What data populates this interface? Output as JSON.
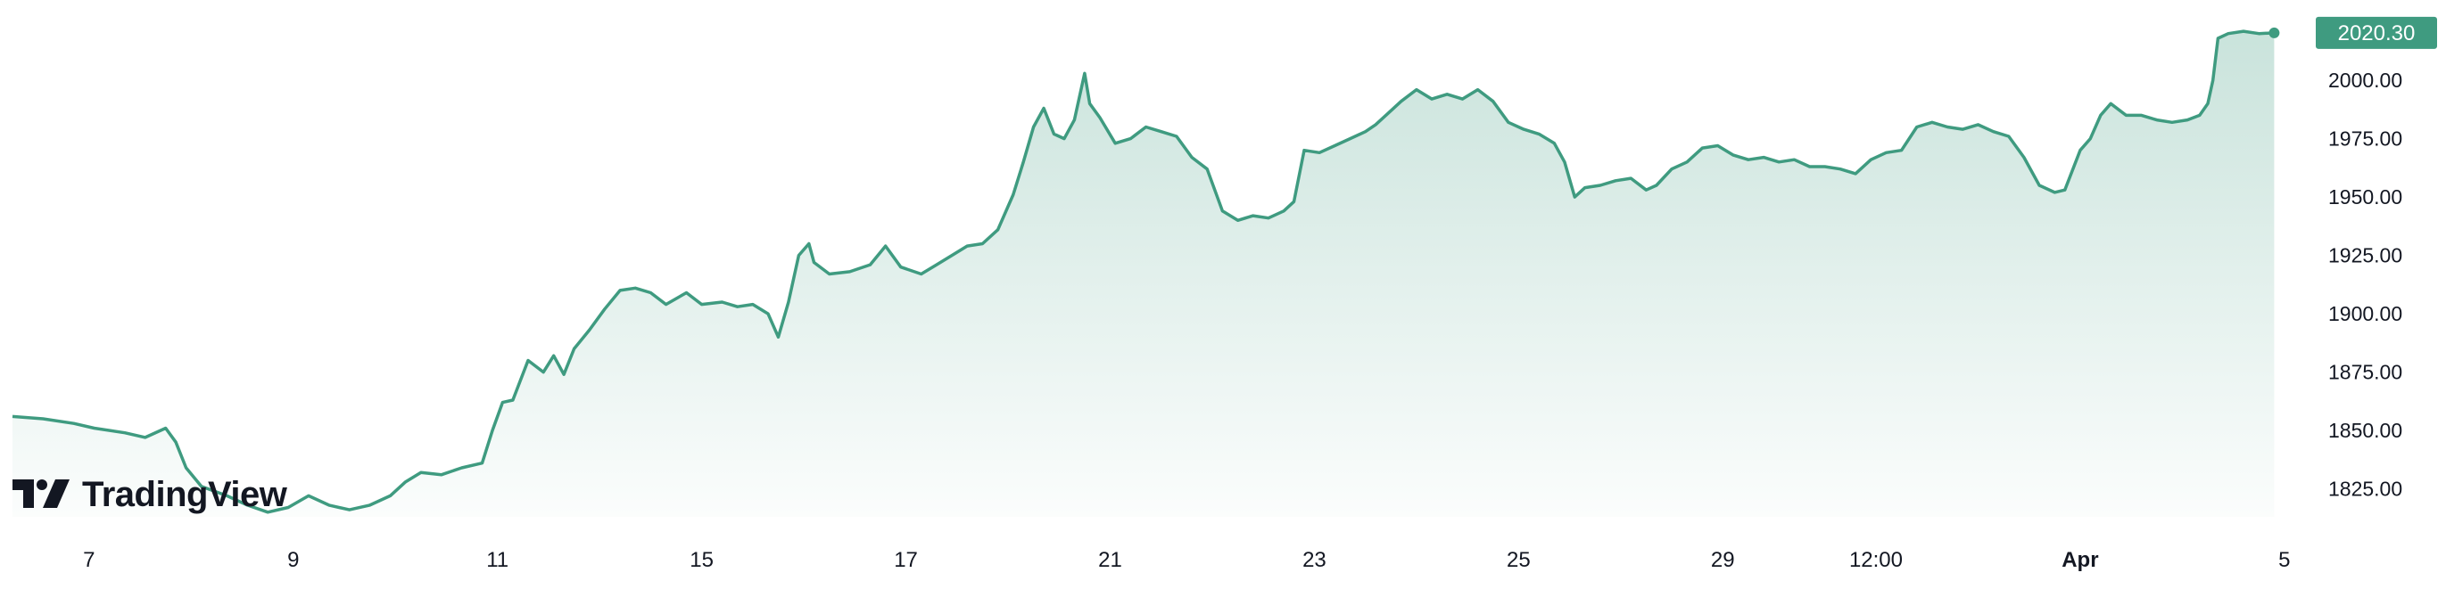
{
  "brand": {
    "name": "TradingView",
    "logo_icon": "tradingview-logo-icon"
  },
  "colors": {
    "line": "#3f9b80",
    "badge_bg": "#3f9b80",
    "badge_text": "#ffffff",
    "axis_text": "#131722",
    "background": "#ffffff"
  },
  "chart_data": {
    "type": "area",
    "title": "",
    "xlabel": "",
    "ylabel": "",
    "grid": false,
    "last_price": "2020.30",
    "y_ticks": [
      "1825.00",
      "1850.00",
      "1875.00",
      "1900.00",
      "1925.00",
      "1950.00",
      "1975.00",
      "2000.00"
    ],
    "x_ticks": [
      {
        "label": "7",
        "t": 7.25,
        "bold": false
      },
      {
        "label": "9",
        "t": 9.25,
        "bold": false
      },
      {
        "label": "11",
        "t": 11.25,
        "bold": false
      },
      {
        "label": "15",
        "t": 13.25,
        "bold": false
      },
      {
        "label": "17",
        "t": 15.25,
        "bold": false
      },
      {
        "label": "21",
        "t": 17.25,
        "bold": false
      },
      {
        "label": "23",
        "t": 19.25,
        "bold": false
      },
      {
        "label": "25",
        "t": 21.25,
        "bold": false
      },
      {
        "label": "29",
        "t": 23.25,
        "bold": false
      },
      {
        "label": "12:00",
        "t": 24.75,
        "bold": false
      },
      {
        "label": "Apr",
        "t": 26.75,
        "bold": true
      },
      {
        "label": "5",
        "t": 28.75,
        "bold": false
      }
    ],
    "x_range": [
      6.5,
      28.9
    ],
    "y_range": [
      1813,
      2026
    ],
    "series": [
      {
        "values": [
          [
            6.5,
            1856
          ],
          [
            6.8,
            1855
          ],
          [
            7.1,
            1853
          ],
          [
            7.3,
            1851
          ],
          [
            7.6,
            1849
          ],
          [
            7.8,
            1847
          ],
          [
            8.0,
            1851
          ],
          [
            8.1,
            1845
          ],
          [
            8.2,
            1834
          ],
          [
            8.35,
            1826
          ],
          [
            8.6,
            1822
          ],
          [
            8.8,
            1818
          ],
          [
            9.0,
            1815
          ],
          [
            9.2,
            1817
          ],
          [
            9.4,
            1822
          ],
          [
            9.6,
            1818
          ],
          [
            9.8,
            1816
          ],
          [
            10.0,
            1818
          ],
          [
            10.2,
            1822
          ],
          [
            10.35,
            1828
          ],
          [
            10.5,
            1832
          ],
          [
            10.7,
            1831
          ],
          [
            10.9,
            1834
          ],
          [
            11.1,
            1836
          ],
          [
            11.2,
            1850
          ],
          [
            11.3,
            1862
          ],
          [
            11.4,
            1863
          ],
          [
            11.55,
            1880
          ],
          [
            11.7,
            1875
          ],
          [
            11.8,
            1882
          ],
          [
            11.9,
            1874
          ],
          [
            12.0,
            1885
          ],
          [
            12.15,
            1893
          ],
          [
            12.3,
            1902
          ],
          [
            12.45,
            1910
          ],
          [
            12.6,
            1911
          ],
          [
            12.75,
            1909
          ],
          [
            12.9,
            1904
          ],
          [
            13.1,
            1909
          ],
          [
            13.25,
            1904
          ],
          [
            13.45,
            1905
          ],
          [
            13.6,
            1903
          ],
          [
            13.75,
            1904
          ],
          [
            13.9,
            1900
          ],
          [
            14.0,
            1890
          ],
          [
            14.1,
            1905
          ],
          [
            14.2,
            1925
          ],
          [
            14.3,
            1930
          ],
          [
            14.35,
            1922
          ],
          [
            14.5,
            1917
          ],
          [
            14.7,
            1918
          ],
          [
            14.9,
            1921
          ],
          [
            15.05,
            1929
          ],
          [
            15.2,
            1920
          ],
          [
            15.4,
            1917
          ],
          [
            15.55,
            1921
          ],
          [
            15.7,
            1925
          ],
          [
            15.85,
            1929
          ],
          [
            16.0,
            1930
          ],
          [
            16.15,
            1936
          ],
          [
            16.3,
            1951
          ],
          [
            16.4,
            1965
          ],
          [
            16.5,
            1980
          ],
          [
            16.6,
            1988
          ],
          [
            16.7,
            1977
          ],
          [
            16.8,
            1975
          ],
          [
            16.9,
            1983
          ],
          [
            17.0,
            2003
          ],
          [
            17.05,
            1990
          ],
          [
            17.15,
            1984
          ],
          [
            17.3,
            1973
          ],
          [
            17.45,
            1975
          ],
          [
            17.6,
            1980
          ],
          [
            17.75,
            1978
          ],
          [
            17.9,
            1976
          ],
          [
            18.05,
            1967
          ],
          [
            18.2,
            1962
          ],
          [
            18.35,
            1944
          ],
          [
            18.5,
            1940
          ],
          [
            18.65,
            1942
          ],
          [
            18.8,
            1941
          ],
          [
            18.95,
            1944
          ],
          [
            19.05,
            1948
          ],
          [
            19.15,
            1970
          ],
          [
            19.3,
            1969
          ],
          [
            19.45,
            1972
          ],
          [
            19.6,
            1975
          ],
          [
            19.75,
            1978
          ],
          [
            19.85,
            1981
          ],
          [
            20.0,
            1987
          ],
          [
            20.1,
            1991
          ],
          [
            20.25,
            1996
          ],
          [
            20.4,
            1992
          ],
          [
            20.55,
            1994
          ],
          [
            20.7,
            1992
          ],
          [
            20.85,
            1996
          ],
          [
            21.0,
            1991
          ],
          [
            21.15,
            1982
          ],
          [
            21.3,
            1979
          ],
          [
            21.45,
            1977
          ],
          [
            21.6,
            1973
          ],
          [
            21.7,
            1965
          ],
          [
            21.8,
            1950
          ],
          [
            21.9,
            1954
          ],
          [
            22.05,
            1955
          ],
          [
            22.2,
            1957
          ],
          [
            22.35,
            1958
          ],
          [
            22.5,
            1953
          ],
          [
            22.6,
            1955
          ],
          [
            22.75,
            1962
          ],
          [
            22.9,
            1965
          ],
          [
            23.05,
            1971
          ],
          [
            23.2,
            1972
          ],
          [
            23.35,
            1968
          ],
          [
            23.5,
            1966
          ],
          [
            23.65,
            1967
          ],
          [
            23.8,
            1965
          ],
          [
            23.95,
            1966
          ],
          [
            24.1,
            1963
          ],
          [
            24.25,
            1963
          ],
          [
            24.4,
            1962
          ],
          [
            24.55,
            1960
          ],
          [
            24.7,
            1966
          ],
          [
            24.85,
            1969
          ],
          [
            25.0,
            1970
          ],
          [
            25.15,
            1980
          ],
          [
            25.3,
            1982
          ],
          [
            25.45,
            1980
          ],
          [
            25.6,
            1979
          ],
          [
            25.75,
            1981
          ],
          [
            25.9,
            1978
          ],
          [
            26.05,
            1976
          ],
          [
            26.2,
            1967
          ],
          [
            26.35,
            1955
          ],
          [
            26.5,
            1952
          ],
          [
            26.6,
            1953
          ],
          [
            26.75,
            1970
          ],
          [
            26.85,
            1975
          ],
          [
            26.95,
            1985
          ],
          [
            27.05,
            1990
          ],
          [
            27.2,
            1985
          ],
          [
            27.35,
            1985
          ],
          [
            27.5,
            1983
          ],
          [
            27.65,
            1982
          ],
          [
            27.8,
            1983
          ],
          [
            27.92,
            1985
          ],
          [
            28.0,
            1990
          ],
          [
            28.05,
            2000
          ],
          [
            28.1,
            2018
          ],
          [
            28.2,
            2020
          ],
          [
            28.35,
            2021
          ],
          [
            28.5,
            2020
          ],
          [
            28.65,
            2020.3
          ]
        ]
      }
    ]
  }
}
